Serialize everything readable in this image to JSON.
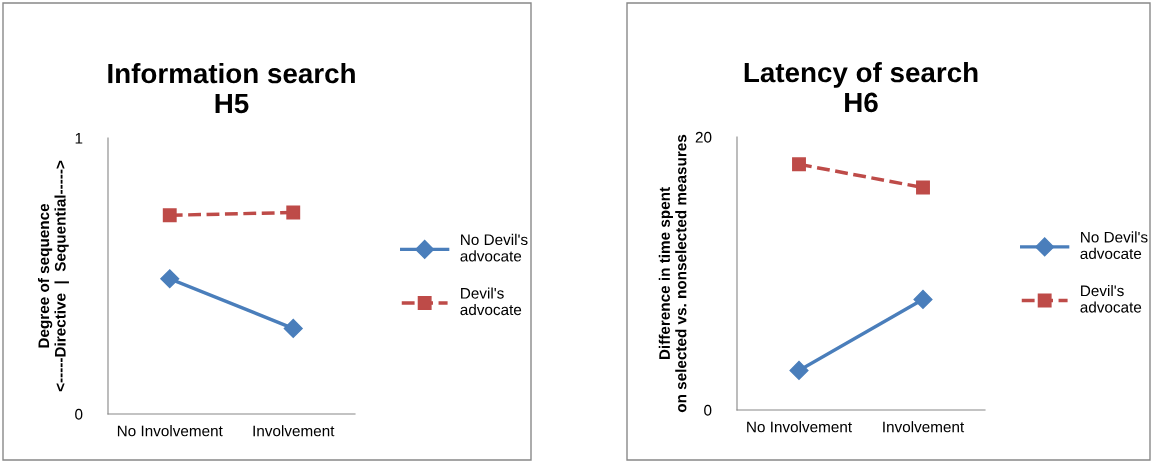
{
  "chart_data": [
    {
      "type": "line",
      "title": "Information search\nH5",
      "ylabel": "Degree of sequence\n<-----Directive  |  Sequential----->",
      "categories": [
        "No Involvement",
        "Involvement"
      ],
      "ylim": [
        0,
        1
      ],
      "yticks": [
        0,
        1
      ],
      "grid": false,
      "legend": "right",
      "series": [
        {
          "name": "No Devil's\nadvocate",
          "color": "#4a7ebb",
          "marker": "diamond",
          "line_style": "solid",
          "values": [
            0.49,
            0.31
          ]
        },
        {
          "name": "Devil's\nadvocate",
          "color": "#be4b48",
          "marker": "square",
          "line_style": "dashed",
          "values": [
            0.72,
            0.73
          ]
        }
      ]
    },
    {
      "type": "line",
      "title": "Latency of search\nH6",
      "ylabel": "Difference in time spent\non selected vs. nonselected measures",
      "categories": [
        "No Involvement",
        "Involvement"
      ],
      "ylim": [
        0,
        20
      ],
      "yticks": [
        0,
        20
      ],
      "grid": false,
      "legend": "right",
      "series": [
        {
          "name": "No Devil's\nadvocate",
          "color": "#4a7ebb",
          "marker": "diamond",
          "line_style": "solid",
          "values": [
            2.9,
            8.1
          ]
        },
        {
          "name": "Devil's\nadvocate",
          "color": "#be4b48",
          "marker": "square",
          "line_style": "dashed",
          "values": [
            18.0,
            16.3
          ]
        }
      ]
    }
  ]
}
